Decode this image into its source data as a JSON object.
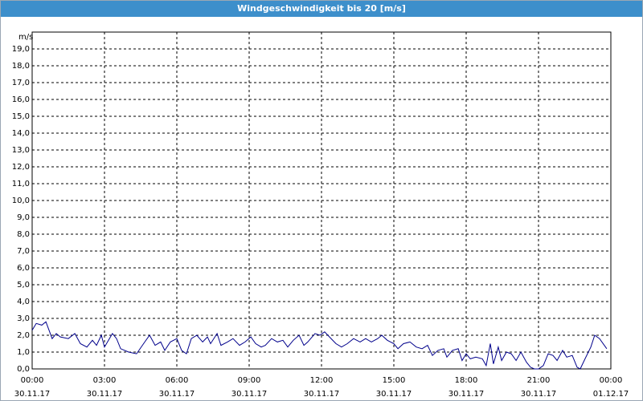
{
  "chart_data": {
    "type": "line",
    "title": "Windgeschwindigkeit bis 20 [m/s]",
    "y_label": "m/s",
    "ylim": [
      0,
      20
    ],
    "xlim": [
      0,
      24
    ],
    "grid": true,
    "yticks": [
      {
        "value": 0,
        "label": "0,0"
      },
      {
        "value": 1,
        "label": "1,0"
      },
      {
        "value": 2,
        "label": "2,0"
      },
      {
        "value": 3,
        "label": "3,0"
      },
      {
        "value": 4,
        "label": "4,0"
      },
      {
        "value": 5,
        "label": "5,0"
      },
      {
        "value": 6,
        "label": "6,0"
      },
      {
        "value": 7,
        "label": "7,0"
      },
      {
        "value": 8,
        "label": "8,0"
      },
      {
        "value": 9,
        "label": "9,0"
      },
      {
        "value": 10,
        "label": "10,0"
      },
      {
        "value": 11,
        "label": "11,0"
      },
      {
        "value": 12,
        "label": "12,0"
      },
      {
        "value": 13,
        "label": "13,0"
      },
      {
        "value": 14,
        "label": "14,0"
      },
      {
        "value": 15,
        "label": "15,0"
      },
      {
        "value": 16,
        "label": "16,0"
      },
      {
        "value": 17,
        "label": "17,0"
      },
      {
        "value": 18,
        "label": "18,0"
      },
      {
        "value": 19,
        "label": "19,0"
      }
    ],
    "xticks": [
      {
        "value": 0,
        "label": "00:00",
        "date": "30.11.17"
      },
      {
        "value": 3,
        "label": "03:00",
        "date": "30.11.17"
      },
      {
        "value": 6,
        "label": "06:00",
        "date": "30.11.17"
      },
      {
        "value": 9,
        "label": "09:00",
        "date": "30.11.17"
      },
      {
        "value": 12,
        "label": "12:00",
        "date": "30.11.17"
      },
      {
        "value": 15,
        "label": "15:00",
        "date": "30.11.17"
      },
      {
        "value": 18,
        "label": "18:00",
        "date": "30.11.17"
      },
      {
        "value": 21,
        "label": "21:00",
        "date": "30.11.17"
      },
      {
        "value": 24,
        "label": "00:00",
        "date": "01.12.17"
      }
    ],
    "x": [
      0,
      0.17,
      0.4,
      0.57,
      0.83,
      1,
      1.17,
      1.5,
      1.77,
      2,
      2.27,
      2.5,
      2.67,
      2.87,
      3,
      3.33,
      3.5,
      3.67,
      4,
      4.33,
      4.67,
      4.87,
      5.1,
      5.33,
      5.5,
      5.73,
      6,
      6.2,
      6.4,
      6.6,
      6.83,
      7.07,
      7.27,
      7.4,
      7.67,
      7.83,
      8.1,
      8.33,
      8.6,
      8.83,
      9.07,
      9.27,
      9.5,
      9.67,
      9.93,
      10.17,
      10.4,
      10.6,
      10.83,
      11.07,
      11.27,
      11.43,
      11.73,
      11.93,
      12.13,
      12.33,
      12.6,
      12.83,
      13.07,
      13.33,
      13.6,
      13.83,
      14.07,
      14.33,
      14.5,
      14.73,
      15,
      15.17,
      15.4,
      15.67,
      15.93,
      16.17,
      16.4,
      16.6,
      16.83,
      17.07,
      17.2,
      17.43,
      17.67,
      17.83,
      18,
      18.17,
      18.4,
      18.67,
      18.83,
      19,
      19.13,
      19.33,
      19.47,
      19.67,
      19.87,
      20.07,
      20.27,
      20.5,
      20.67,
      20.83,
      21,
      21.2,
      21.4,
      21.6,
      21.77,
      22,
      22.17,
      22.4,
      22.6,
      22.73,
      22.93,
      23.17,
      23.33,
      23.53,
      23.83
    ],
    "series": [
      {
        "name": "Windgeschwindigkeit",
        "color": "#00008b",
        "values": [
          2.3,
          2.7,
          2.6,
          2.8,
          1.8,
          2.1,
          1.9,
          1.8,
          2.1,
          1.5,
          1.3,
          1.7,
          1.4,
          2.0,
          1.3,
          2.1,
          1.8,
          1.2,
          1.0,
          0.9,
          1.6,
          2.0,
          1.4,
          1.6,
          1.1,
          1.6,
          1.8,
          1.1,
          0.9,
          1.8,
          2.0,
          1.6,
          1.9,
          1.5,
          2.1,
          1.4,
          1.6,
          1.8,
          1.4,
          1.6,
          1.9,
          1.5,
          1.3,
          1.4,
          1.8,
          1.6,
          1.7,
          1.3,
          1.7,
          2.0,
          1.4,
          1.6,
          2.1,
          2.0,
          2.2,
          1.9,
          1.5,
          1.3,
          1.5,
          1.8,
          1.6,
          1.8,
          1.6,
          1.8,
          2.0,
          1.7,
          1.5,
          1.2,
          1.5,
          1.6,
          1.3,
          1.2,
          1.4,
          0.8,
          1.1,
          1.2,
          0.7,
          1.1,
          1.2,
          0.5,
          0.9,
          0.6,
          0.7,
          0.6,
          0.2,
          1.5,
          0.3,
          1.3,
          0.5,
          1.0,
          0.9,
          0.5,
          1.0,
          0.4,
          0.1,
          0.0,
          0.0,
          0.2,
          0.9,
          0.8,
          0.5,
          1.1,
          0.7,
          0.8,
          0.1,
          0.0,
          0.6,
          1.3,
          2.0,
          1.8,
          1.2
        ]
      }
    ]
  }
}
